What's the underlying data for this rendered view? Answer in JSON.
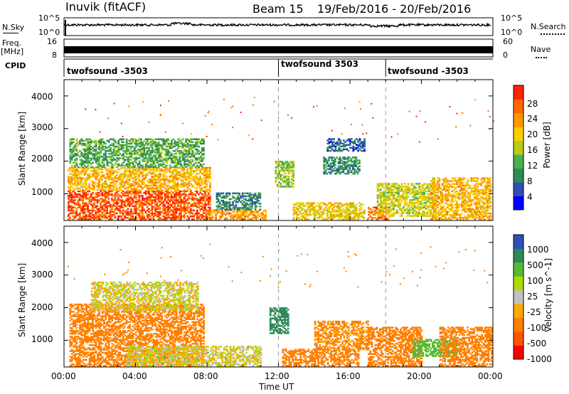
{
  "header": {
    "station": "Inuvik (fitACF)",
    "beam": "Beam 15",
    "dates": "19/Feb/2016 - 20/Feb/2016"
  },
  "top_panels": {
    "nsky_label": "N.Sky",
    "nsky_ticks": [
      "10^5",
      "10^0"
    ],
    "nsearch_label": "N.Search",
    "nsearch_ticks": [
      "10^5",
      "10^0"
    ],
    "freq_label_1": "Freq.",
    "freq_label_2": "[MHz]",
    "freq_ticks": [
      "16",
      "8"
    ],
    "nave_label": "Nave",
    "nave_ticks": [
      "60",
      "0"
    ]
  },
  "cpid": {
    "label": "CPID",
    "segments": [
      {
        "start_hour": 0,
        "name": "twofsound -3503"
      },
      {
        "start_hour": 12,
        "name": "twofsound 3503"
      },
      {
        "start_hour": 18,
        "name": "twofsound -3503"
      }
    ]
  },
  "colors": {
    "power_scale": [
      "#0000ff",
      "#2e4fb4",
      "#2e8b57",
      "#4caf50",
      "#b5cc18",
      "#ffcc00",
      "#ff9900",
      "#ff6600",
      "#ff2200"
    ],
    "velocity_scale": [
      "#ff0000",
      "#ff5500",
      "#ff8000",
      "#ffaa00",
      "#c0c0c0",
      "#aadd00",
      "#55bb33",
      "#2e8b57",
      "#2e4fb4"
    ]
  },
  "chart_data": [
    {
      "type": "heatmap",
      "title": "Power",
      "ylabel": "Slant Range [km]",
      "xlabel": "",
      "x_range": [
        0,
        24
      ],
      "ylim": [
        180,
        4500
      ],
      "y_ticks": [
        1000,
        2000,
        3000,
        4000
      ],
      "x_ticks": [
        "00:00",
        "04:00",
        "08:00",
        "12:00",
        "16:00",
        "20:00",
        "00:00"
      ],
      "colorbar_label": "Power [dB]",
      "colorbar_ticks": [
        "4",
        "8",
        "12",
        "16",
        "20",
        "24",
        "28"
      ],
      "colorbar_range": [
        0,
        30
      ],
      "regions": [
        {
          "t0": 0.2,
          "t1": 8.2,
          "r0": 200,
          "r1": 1100,
          "v": 26
        },
        {
          "t0": 0.2,
          "t1": 8.2,
          "r0": 1100,
          "r1": 1800,
          "v": 20
        },
        {
          "t0": 0.3,
          "t1": 7.8,
          "r0": 1800,
          "r1": 2700,
          "v": 11
        },
        {
          "t0": 8.0,
          "t1": 11.3,
          "r0": 200,
          "r1": 500,
          "v": 22
        },
        {
          "t0": 8.5,
          "t1": 11.0,
          "r0": 500,
          "r1": 1000,
          "v": 8
        },
        {
          "t0": 11.8,
          "t1": 12.8,
          "r0": 1200,
          "r1": 2000,
          "v": 14
        },
        {
          "t0": 12.8,
          "t1": 16.8,
          "r0": 200,
          "r1": 700,
          "v": 18
        },
        {
          "t0": 14.5,
          "t1": 16.5,
          "r0": 1600,
          "r1": 2100,
          "v": 9
        },
        {
          "t0": 14.7,
          "t1": 16.8,
          "r0": 2300,
          "r1": 2700,
          "v": 6
        },
        {
          "t0": 17.0,
          "t1": 18.2,
          "r0": 200,
          "r1": 600,
          "v": 24
        },
        {
          "t0": 17.5,
          "t1": 20.8,
          "r0": 300,
          "r1": 1300,
          "v": 16
        },
        {
          "t0": 20.5,
          "t1": 23.9,
          "r0": 200,
          "r1": 1500,
          "v": 20
        }
      ]
    },
    {
      "type": "heatmap",
      "title": "Velocity",
      "ylabel": "Slant Range [km]",
      "xlabel": "Time UT",
      "x_range": [
        0,
        24
      ],
      "ylim": [
        180,
        4500
      ],
      "y_ticks": [
        1000,
        2000,
        3000,
        4000
      ],
      "x_ticks": [
        "00:00",
        "04:00",
        "08:00",
        "12:00",
        "16:00",
        "20:00",
        "00:00"
      ],
      "colorbar_label": "Velocity [m s^-1]",
      "colorbar_ticks": [
        "-1000",
        "-500",
        "-100",
        "-25",
        "25",
        "100",
        "500",
        "1000"
      ],
      "regions": [
        {
          "t0": 0.3,
          "t1": 7.8,
          "r0": 200,
          "r1": 1000,
          "v": -300
        },
        {
          "t0": 0.3,
          "t1": 7.8,
          "r0": 1000,
          "r1": 2100,
          "v": -400
        },
        {
          "t0": 1.5,
          "t1": 7.5,
          "r0": 1900,
          "r1": 2800,
          "v": 0
        },
        {
          "t0": 3.5,
          "t1": 11.0,
          "r0": 200,
          "r1": 800,
          "v": 5
        },
        {
          "t0": 11.5,
          "t1": 12.5,
          "r0": 1200,
          "r1": 2000,
          "v": 700
        },
        {
          "t0": 12.2,
          "t1": 16.5,
          "r0": 200,
          "r1": 700,
          "v": -200
        },
        {
          "t0": 14.0,
          "t1": 17.0,
          "r0": 700,
          "r1": 1600,
          "v": -150
        },
        {
          "t0": 17.0,
          "t1": 20.0,
          "r0": 200,
          "r1": 1400,
          "v": -300
        },
        {
          "t0": 19.5,
          "t1": 22.0,
          "r0": 500,
          "r1": 1000,
          "v": 400
        },
        {
          "t0": 21.0,
          "t1": 23.9,
          "r0": 200,
          "r1": 1400,
          "v": -400
        }
      ]
    }
  ]
}
